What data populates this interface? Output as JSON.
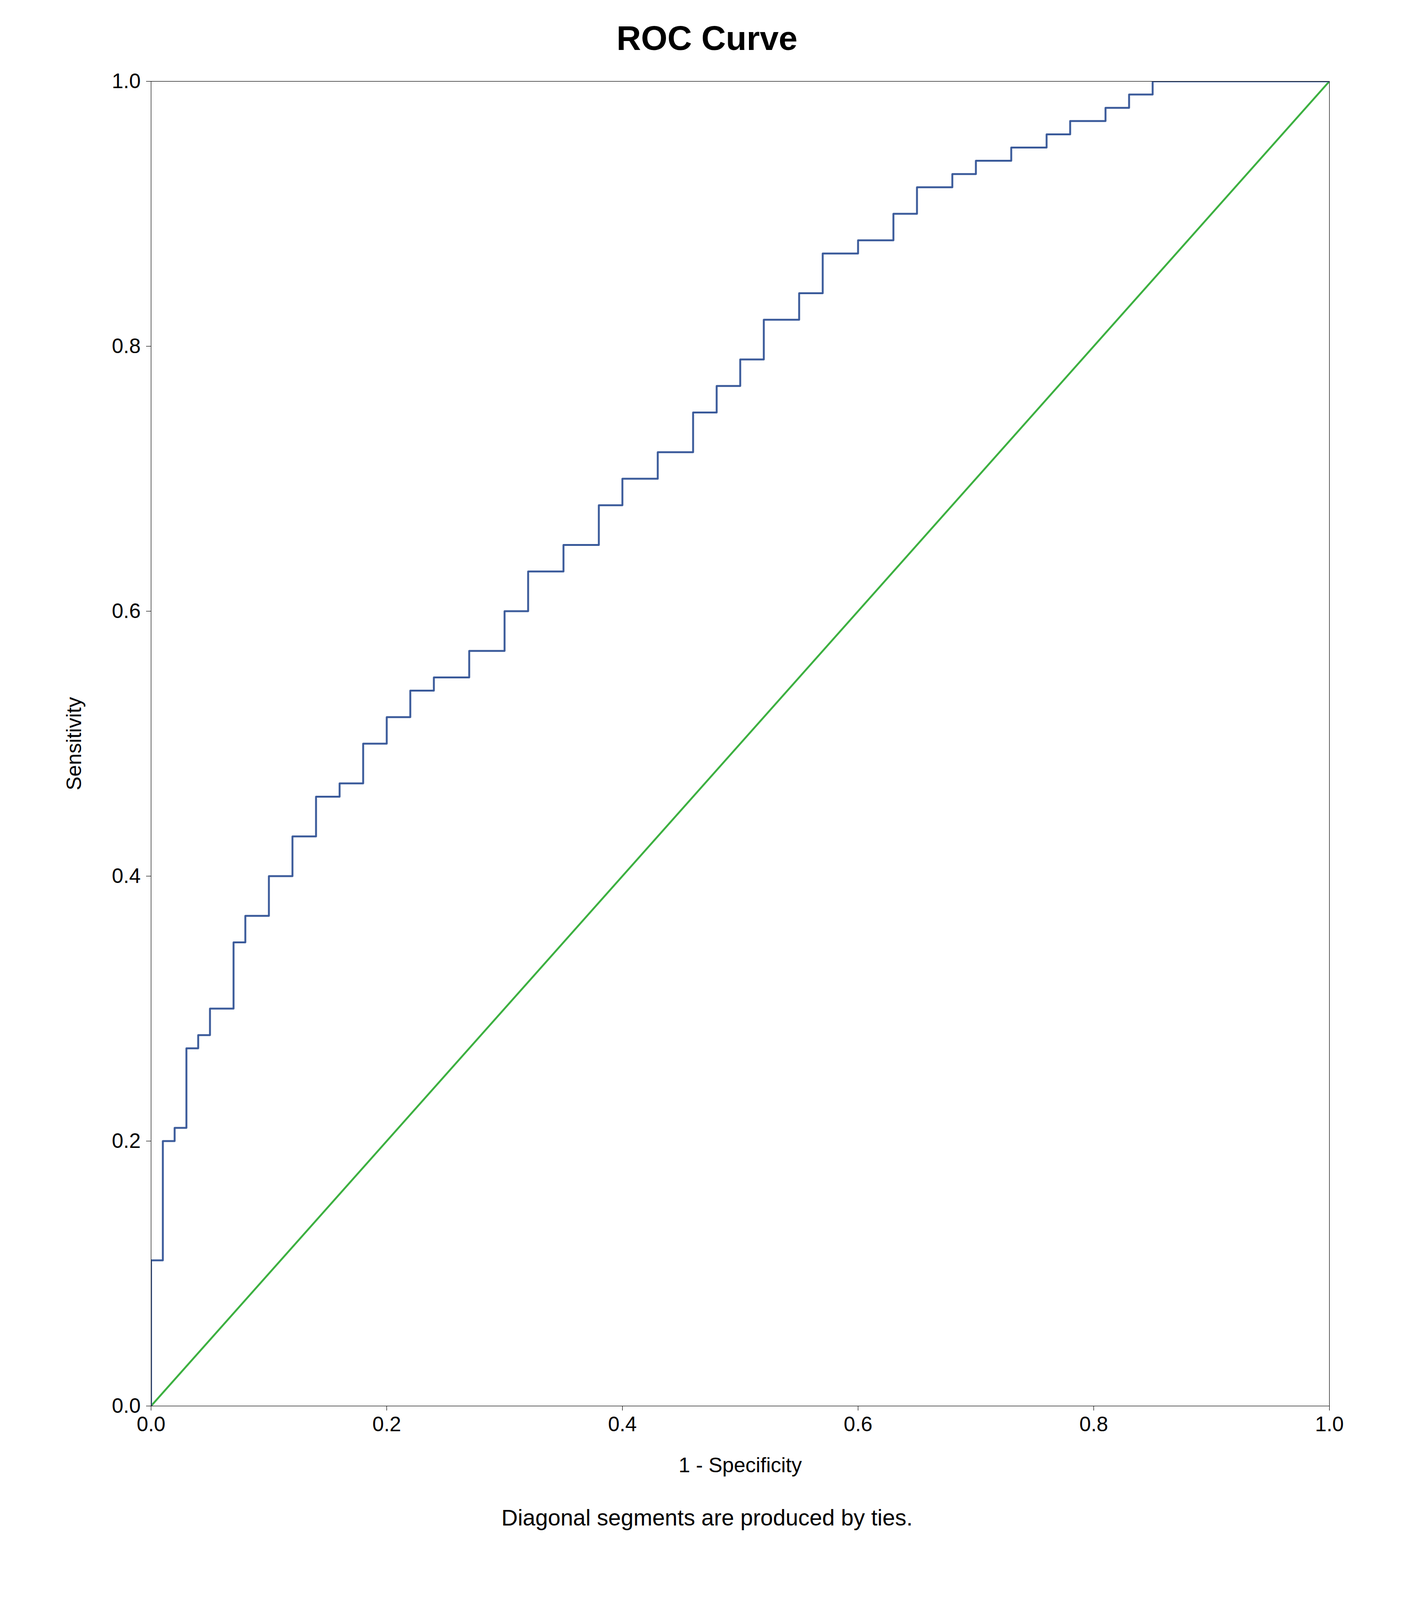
{
  "chart_data": {
    "type": "line",
    "title": "ROC Curve",
    "xlabel": "1 - Specificity",
    "ylabel": "Sensitivity",
    "footnote": "Diagonal segments are produced by ties.",
    "xlim": [
      0.0,
      1.0
    ],
    "ylim": [
      0.0,
      1.0
    ],
    "xticks": [
      {
        "value": 0.0,
        "label": "0.0"
      },
      0.2,
      0.4,
      0.6,
      0.8,
      {
        "value": 1.0,
        "label": "1.0"
      }
    ],
    "yticks": [
      {
        "value": 0.0,
        "label": "0.0"
      },
      0.2,
      0.4,
      0.6,
      0.8,
      {
        "value": 1.0,
        "label": "1.0"
      }
    ],
    "grid": false,
    "series": [
      {
        "color": "#3cb040",
        "x": [
          0,
          1
        ],
        "values": [
          0,
          1
        ]
      },
      {
        "color": "#3a5a9a",
        "x": [
          0.0,
          0.0,
          0.0,
          0.01,
          0.01,
          0.02,
          0.02,
          0.03,
          0.03,
          0.04,
          0.04,
          0.05,
          0.05,
          0.07,
          0.07,
          0.08,
          0.08,
          0.1,
          0.1,
          0.12,
          0.12,
          0.14,
          0.14,
          0.16,
          0.16,
          0.18,
          0.18,
          0.2,
          0.2,
          0.22,
          0.22,
          0.24,
          0.24,
          0.27,
          0.27,
          0.3,
          0.3,
          0.32,
          0.32,
          0.35,
          0.35,
          0.38,
          0.38,
          0.4,
          0.4,
          0.43,
          0.43,
          0.46,
          0.46,
          0.48,
          0.48,
          0.5,
          0.5,
          0.52,
          0.52,
          0.55,
          0.55,
          0.57,
          0.57,
          0.6,
          0.6,
          0.63,
          0.63,
          0.65,
          0.65,
          0.68,
          0.68,
          0.7,
          0.7,
          0.73,
          0.73,
          0.76,
          0.76,
          0.78,
          0.78,
          0.81,
          0.81,
          0.83,
          0.83,
          0.85,
          0.85,
          0.87,
          0.87,
          0.9,
          0.9,
          0.92,
          0.92,
          0.95,
          0.95,
          0.97,
          0.97,
          1.0
        ],
        "values": [
          0.0,
          0.1,
          0.11,
          0.11,
          0.2,
          0.2,
          0.21,
          0.21,
          0.27,
          0.27,
          0.28,
          0.28,
          0.3,
          0.3,
          0.35,
          0.35,
          0.37,
          0.37,
          0.4,
          0.4,
          0.43,
          0.43,
          0.46,
          0.46,
          0.47,
          0.47,
          0.5,
          0.5,
          0.52,
          0.52,
          0.54,
          0.54,
          0.55,
          0.55,
          0.57,
          0.57,
          0.6,
          0.6,
          0.63,
          0.63,
          0.65,
          0.65,
          0.68,
          0.68,
          0.7,
          0.7,
          0.72,
          0.72,
          0.75,
          0.75,
          0.77,
          0.77,
          0.79,
          0.79,
          0.82,
          0.82,
          0.84,
          0.84,
          0.87,
          0.87,
          0.88,
          0.88,
          0.9,
          0.9,
          0.92,
          0.92,
          0.93,
          0.93,
          0.94,
          0.94,
          0.95,
          0.95,
          0.96,
          0.96,
          0.97,
          0.97,
          0.98,
          0.98,
          0.99,
          0.99,
          1.0,
          1.0,
          1.0,
          1.0,
          1.0,
          1.0,
          1.0,
          1.0,
          1.0,
          1.0,
          1.0,
          1.0
        ]
      }
    ]
  }
}
